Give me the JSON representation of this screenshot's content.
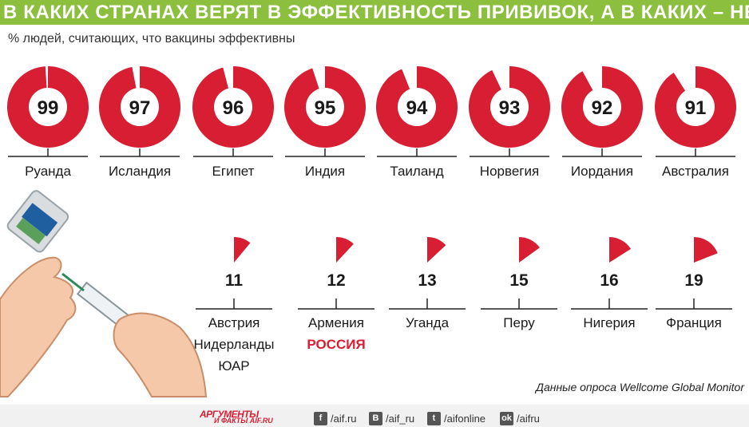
{
  "header": {
    "title": "В КАКИХ СТРАНАХ ВЕРЯТ В ЭФФЕКТИВНОСТЬ ПРИВИВОК, А В КАКИХ – НЕТ"
  },
  "chart_data": {
    "type": "pie",
    "title": "В КАКИХ СТРАНАХ ВЕРЯТ В ЭФФЕКТИВНОСТЬ ПРИВИВОК, А В КАКИХ – НЕТ",
    "subtitle": "% людей, считающих, что вакцины эффективны",
    "top": [
      {
        "value": 99,
        "countries": [
          "Руанда"
        ]
      },
      {
        "value": 97,
        "countries": [
          "Исландия"
        ]
      },
      {
        "value": 96,
        "countries": [
          "Египет"
        ]
      },
      {
        "value": 95,
        "countries": [
          "Индия"
        ]
      },
      {
        "value": 94,
        "countries": [
          "Таиланд"
        ]
      },
      {
        "value": 93,
        "countries": [
          "Норвегия"
        ]
      },
      {
        "value": 92,
        "countries": [
          "Иордания"
        ]
      },
      {
        "value": 91,
        "countries": [
          "Австралия"
        ]
      }
    ],
    "bottom": [
      {
        "value": 11,
        "countries": [
          "Австрия",
          "Нидерланды",
          "ЮАР"
        ]
      },
      {
        "value": 12,
        "countries": [
          "Армения",
          "РОССИЯ"
        ],
        "highlight": "РОССИЯ"
      },
      {
        "value": 13,
        "countries": [
          "Уганда"
        ]
      },
      {
        "value": 15,
        "countries": [
          "Перу"
        ]
      },
      {
        "value": 16,
        "countries": [
          "Нигерия"
        ]
      },
      {
        "value": 19,
        "countries": [
          "Франция"
        ]
      }
    ],
    "colors": {
      "accent": "#d71e33",
      "text": "#1a1a1a",
      "rule": "#222222"
    }
  },
  "source": "Данные опроса Wellcome Global Monitor",
  "footer": {
    "logo_top": "АРГУМЕНТЫ",
    "logo_bottom": "И ФАКТЫ AIF.RU",
    "social": [
      {
        "icon": "facebook-icon",
        "glyph": "f",
        "label": "/aif.ru"
      },
      {
        "icon": "vk-icon",
        "glyph": "B",
        "label": "/aif_ru"
      },
      {
        "icon": "twitter-icon",
        "glyph": "t",
        "label": "/aifonline"
      },
      {
        "icon": "odnoklassniki-icon",
        "glyph": "ok",
        "label": "/aifru"
      }
    ]
  }
}
